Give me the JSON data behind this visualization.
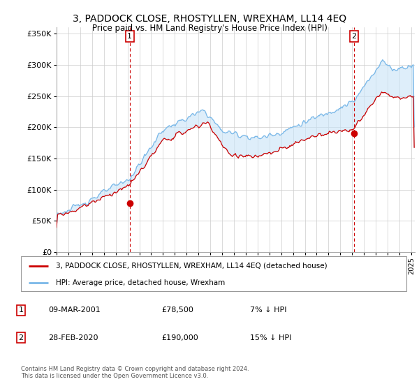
{
  "title": "3, PADDOCK CLOSE, RHOSTYLLEN, WREXHAM, LL14 4EQ",
  "subtitle": "Price paid vs. HM Land Registry's House Price Index (HPI)",
  "legend_line1": "3, PADDOCK CLOSE, RHOSTYLLEN, WREXHAM, LL14 4EQ (detached house)",
  "legend_line2": "HPI: Average price, detached house, Wrexham",
  "transaction1_date": "09-MAR-2001",
  "transaction1_price": "£78,500",
  "transaction1_hpi": "7% ↓ HPI",
  "transaction2_date": "28-FEB-2020",
  "transaction2_price": "£190,000",
  "transaction2_hpi": "15% ↓ HPI",
  "footer": "Contains HM Land Registry data © Crown copyright and database right 2024.\nThis data is licensed under the Open Government Licence v3.0.",
  "hpi_color": "#7ab8e8",
  "hpi_fill_color": "#c8e4f8",
  "price_color": "#cc0000",
  "vline_color": "#cc0000",
  "ylim": [
    0,
    360000
  ],
  "yticks": [
    0,
    50000,
    100000,
    150000,
    200000,
    250000,
    300000,
    350000
  ],
  "ytick_labels": [
    "£0",
    "£50K",
    "£100K",
    "£150K",
    "£200K",
    "£250K",
    "£300K",
    "£350K"
  ],
  "transaction1_x": 2001.19,
  "transaction1_y": 78500,
  "transaction2_x": 2020.16,
  "transaction2_y": 190000,
  "xmin": 1995,
  "xmax": 2025.3
}
